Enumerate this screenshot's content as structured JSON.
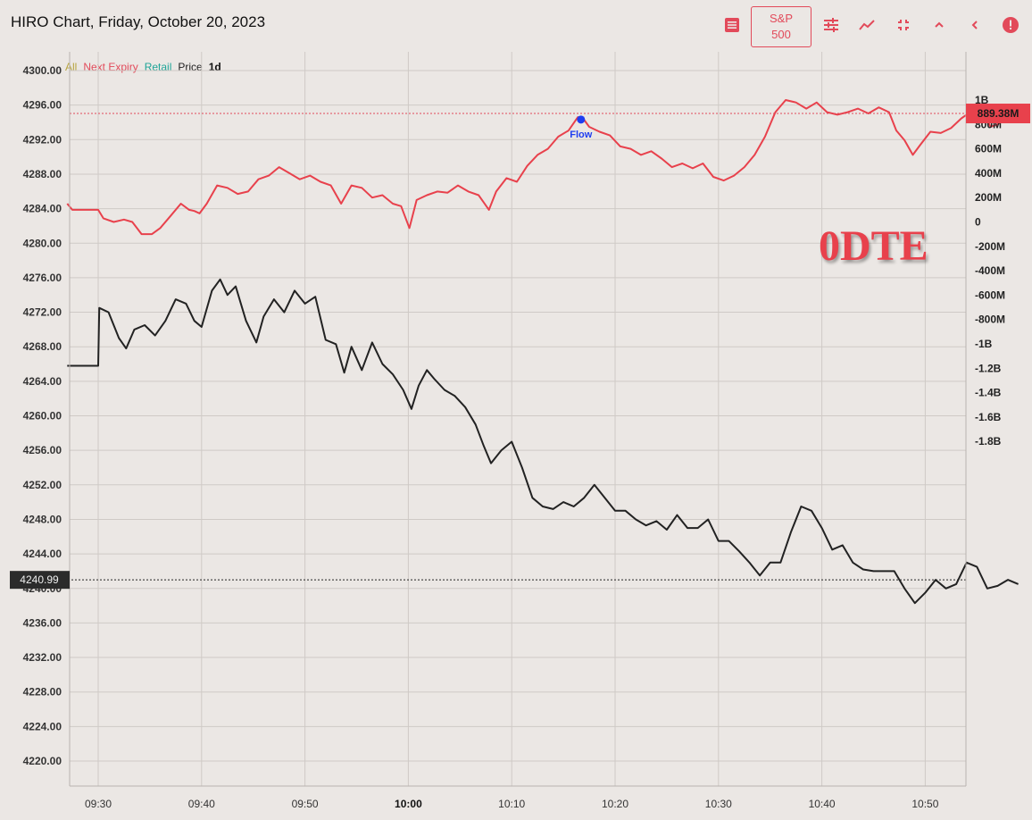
{
  "header": {
    "title": "HIRO Chart, Friday, October 20, 2023",
    "sp_line1": "S&P",
    "sp_line2": "500"
  },
  "icons": [
    "menu-icon",
    "sliders-icon",
    "trend-icon",
    "collapse-icon",
    "chevron-up-icon",
    "chevron-left-icon",
    "info-icon"
  ],
  "colors": {
    "accent": "#e24a5a",
    "price": "#222222",
    "next_expiry": "#e8414c",
    "all": "#b7a43e",
    "retail": "#1fa598",
    "flow_marker": "#1f3df0"
  },
  "legend": {
    "all": "All",
    "next_expiry": "Next Expiry",
    "retail": "Retail",
    "price": "Price",
    "period": "1d"
  },
  "annotation": "0DTE",
  "chart_data": {
    "type": "line",
    "left_axis": {
      "ticks": [
        "4300.00",
        "4296.00",
        "4292.00",
        "4288.00",
        "4284.00",
        "4280.00",
        "4276.00",
        "4272.00",
        "4268.00",
        "4264.00",
        "4260.00",
        "4256.00",
        "4252.00",
        "4248.00",
        "4244.00",
        "4240.00",
        "4236.00",
        "4232.00",
        "4228.00",
        "4224.00",
        "4220.00"
      ],
      "range": [
        4218,
        4301
      ]
    },
    "right_axis": {
      "ticks": [
        "1B",
        "800M",
        "600M",
        "400M",
        "200M",
        "0",
        "-200M",
        "-400M",
        "-600M",
        "-800M",
        "-1B",
        "-1.2B",
        "-1.4B",
        "-1.6B",
        "-1.8B"
      ],
      "range": [
        -1.8,
        1.1
      ],
      "unit": "B"
    },
    "x_axis": {
      "ticks": [
        "09:30",
        "09:40",
        "09:50",
        "10:00",
        "10:10",
        "10:20",
        "10:30",
        "10:40",
        "10:50"
      ],
      "bold_tick": "10:00",
      "range": [
        "09:27",
        "10:54"
      ]
    },
    "current_price": "4240.99",
    "current_flow": "889.38M",
    "flow_marker": {
      "time": "10:16.7",
      "value": 0.84,
      "label": "Flow"
    },
    "series": [
      {
        "name": "Price",
        "color": "#222222",
        "points": [
          [
            -3,
            4265.8
          ],
          [
            0,
            4265.8
          ],
          [
            0.1,
            4272.5
          ],
          [
            1,
            4272.0
          ],
          [
            2,
            4269.0
          ],
          [
            2.7,
            4267.8
          ],
          [
            3.5,
            4270.0
          ],
          [
            4.5,
            4270.5
          ],
          [
            5.5,
            4269.3
          ],
          [
            6.5,
            4271.0
          ],
          [
            7.5,
            4273.5
          ],
          [
            8.5,
            4273.0
          ],
          [
            9.3,
            4271.0
          ],
          [
            10,
            4270.3
          ],
          [
            11,
            4274.5
          ],
          [
            11.8,
            4275.8
          ],
          [
            12.5,
            4274.0
          ],
          [
            13.3,
            4275.0
          ],
          [
            14.3,
            4271.0
          ],
          [
            15.3,
            4268.5
          ],
          [
            16,
            4271.5
          ],
          [
            17,
            4273.5
          ],
          [
            18,
            4272.0
          ],
          [
            19,
            4274.5
          ],
          [
            20,
            4273.0
          ],
          [
            21,
            4273.8
          ],
          [
            22,
            4268.8
          ],
          [
            23,
            4268.3
          ],
          [
            23.8,
            4265.0
          ],
          [
            24.5,
            4268.0
          ],
          [
            25.5,
            4265.3
          ],
          [
            26.5,
            4268.5
          ],
          [
            27.5,
            4266.0
          ],
          [
            28.5,
            4264.8
          ],
          [
            29.5,
            4263.0
          ],
          [
            30.3,
            4260.8
          ],
          [
            31,
            4263.5
          ],
          [
            31.8,
            4265.3
          ],
          [
            32.5,
            4264.3
          ],
          [
            33.5,
            4263.0
          ],
          [
            34.5,
            4262.3
          ],
          [
            35.5,
            4261.0
          ],
          [
            36.5,
            4259.0
          ],
          [
            37.3,
            4256.5
          ],
          [
            38,
            4254.5
          ],
          [
            39,
            4256.0
          ],
          [
            40,
            4257.0
          ],
          [
            41,
            4254.0
          ],
          [
            42,
            4250.5
          ],
          [
            43,
            4249.5
          ],
          [
            44,
            4249.2
          ],
          [
            45,
            4250.0
          ],
          [
            46,
            4249.5
          ],
          [
            47,
            4250.5
          ],
          [
            48,
            4252.0
          ],
          [
            49,
            4250.5
          ],
          [
            50,
            4249.0
          ],
          [
            51,
            4249.0
          ],
          [
            52,
            4248.0
          ],
          [
            53,
            4247.3
          ],
          [
            54,
            4247.8
          ],
          [
            55,
            4246.8
          ],
          [
            56,
            4248.5
          ],
          [
            57,
            4247.0
          ],
          [
            58,
            4247.0
          ],
          [
            59,
            4248.0
          ],
          [
            60,
            4245.5
          ],
          [
            61,
            4245.5
          ],
          [
            62,
            4244.3
          ],
          [
            63,
            4243.0
          ],
          [
            64,
            4241.5
          ],
          [
            65,
            4243.0
          ],
          [
            66,
            4243.0
          ],
          [
            67,
            4246.5
          ],
          [
            68,
            4249.5
          ],
          [
            69,
            4249.0
          ],
          [
            70,
            4247.0
          ],
          [
            71,
            4244.5
          ],
          [
            72,
            4245.0
          ],
          [
            73,
            4243.0
          ],
          [
            74,
            4242.2
          ],
          [
            75,
            4242.0
          ],
          [
            76,
            4242.0
          ],
          [
            77,
            4242.0
          ],
          [
            78,
            4240.0
          ],
          [
            79,
            4238.3
          ],
          [
            80,
            4239.5
          ],
          [
            81,
            4241.0
          ],
          [
            82,
            4240.0
          ],
          [
            83,
            4240.5
          ],
          [
            84,
            4243.0
          ],
          [
            85,
            4242.5
          ],
          [
            86,
            4240.0
          ],
          [
            87,
            4240.3
          ],
          [
            88,
            4241.0
          ],
          [
            89,
            4240.5
          ]
        ]
      },
      {
        "name": "Next Expiry",
        "color": "#e8414c",
        "points": [
          [
            -3,
            0.15
          ],
          [
            -2.5,
            0.1
          ],
          [
            0,
            0.1
          ],
          [
            0.5,
            0.03
          ],
          [
            1.5,
            0.0
          ],
          [
            2.5,
            0.02
          ],
          [
            3.3,
            0.0
          ],
          [
            4.2,
            -0.1
          ],
          [
            5.2,
            -0.1
          ],
          [
            6,
            -0.05
          ],
          [
            7,
            0.05
          ],
          [
            8,
            0.15
          ],
          [
            8.8,
            0.1
          ],
          [
            9.3,
            0.09
          ],
          [
            9.8,
            0.07
          ],
          [
            10.5,
            0.15
          ],
          [
            11.5,
            0.3
          ],
          [
            12.5,
            0.28
          ],
          [
            13.5,
            0.23
          ],
          [
            14.5,
            0.25
          ],
          [
            15.5,
            0.35
          ],
          [
            16.5,
            0.38
          ],
          [
            17.5,
            0.45
          ],
          [
            18.5,
            0.4
          ],
          [
            19.5,
            0.35
          ],
          [
            20.5,
            0.38
          ],
          [
            21.5,
            0.33
          ],
          [
            22.5,
            0.3
          ],
          [
            23.5,
            0.15
          ],
          [
            24.5,
            0.3
          ],
          [
            25.5,
            0.28
          ],
          [
            26.5,
            0.2
          ],
          [
            27.5,
            0.22
          ],
          [
            28.5,
            0.15
          ],
          [
            29.3,
            0.13
          ],
          [
            30.1,
            -0.05
          ],
          [
            30.8,
            0.18
          ],
          [
            31.8,
            0.22
          ],
          [
            32.8,
            0.25
          ],
          [
            33.8,
            0.24
          ],
          [
            34.8,
            0.3
          ],
          [
            35.8,
            0.25
          ],
          [
            36.8,
            0.22
          ],
          [
            37.3,
            0.16
          ],
          [
            37.8,
            0.1
          ],
          [
            38.5,
            0.25
          ],
          [
            39.5,
            0.36
          ],
          [
            40.5,
            0.33
          ],
          [
            41.5,
            0.46
          ],
          [
            42.5,
            0.55
          ],
          [
            43.5,
            0.6
          ],
          [
            44.5,
            0.7
          ],
          [
            45.5,
            0.75
          ],
          [
            46.4,
            0.86
          ],
          [
            46.9,
            0.85
          ],
          [
            47.5,
            0.78
          ],
          [
            48.5,
            0.74
          ],
          [
            49.5,
            0.71
          ],
          [
            50.5,
            0.62
          ],
          [
            51.5,
            0.6
          ],
          [
            52.5,
            0.55
          ],
          [
            53.5,
            0.58
          ],
          [
            54.5,
            0.52
          ],
          [
            55.5,
            0.45
          ],
          [
            56.5,
            0.48
          ],
          [
            57.5,
            0.44
          ],
          [
            58.5,
            0.48
          ],
          [
            59.5,
            0.37
          ],
          [
            60.5,
            0.34
          ],
          [
            61.5,
            0.38
          ],
          [
            62.5,
            0.45
          ],
          [
            63.5,
            0.55
          ],
          [
            64.5,
            0.7
          ],
          [
            65.5,
            0.9
          ],
          [
            66.5,
            1.0
          ],
          [
            67.5,
            0.98
          ],
          [
            68.5,
            0.93
          ],
          [
            69.5,
            0.98
          ],
          [
            70.5,
            0.9
          ],
          [
            71.5,
            0.88
          ],
          [
            72.5,
            0.9
          ],
          [
            73.5,
            0.93
          ],
          [
            74.5,
            0.89
          ],
          [
            75.5,
            0.94
          ],
          [
            76.5,
            0.9
          ],
          [
            77.2,
            0.75
          ],
          [
            78,
            0.67
          ],
          [
            78.8,
            0.55
          ],
          [
            79.5,
            0.63
          ],
          [
            80.5,
            0.74
          ],
          [
            81.5,
            0.73
          ],
          [
            82.5,
            0.77
          ],
          [
            83.5,
            0.85
          ],
          [
            84.5,
            0.91
          ],
          [
            85.5,
            0.94
          ],
          [
            86.3,
            0.78
          ],
          [
            87,
            0.8
          ],
          [
            88,
            0.87
          ],
          [
            89,
            0.89
          ]
        ]
      }
    ]
  }
}
